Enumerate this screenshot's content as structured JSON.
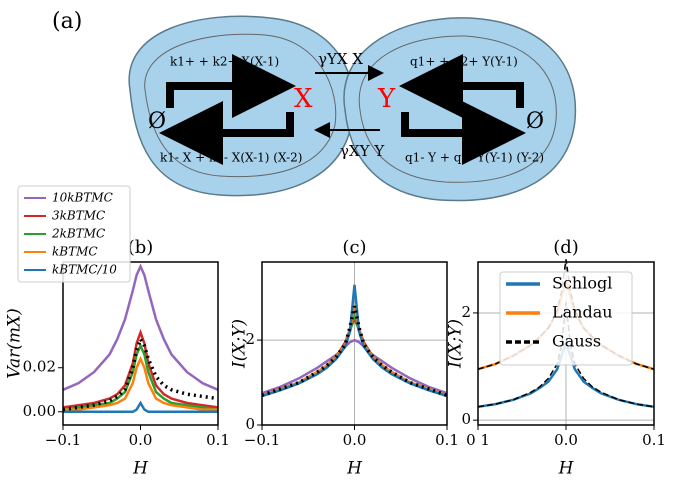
{
  "diagram": {
    "label": "(a)",
    "top_left": "k1+ + k2+ X(X-1)",
    "bottom_left": "k1- X + k2- X(X-1) (X-2)",
    "x_node": "X",
    "y_node": "Y",
    "empty_left": "Ø",
    "empty_right": "Ø",
    "top_right": "q1+ + q2+ Y(Y-1)",
    "bottom_right": "q1- Y + q2- Y(Y-1) (Y-2)",
    "rate_yx": "γYX X",
    "rate_xy": "γXY Y"
  },
  "chart_data": [
    {
      "type": "line",
      "title": "(b)",
      "xlabel": "H",
      "ylabel": "Var(mX)",
      "legend": "upper left",
      "grid": false,
      "x": [
        -0.1,
        -0.08,
        -0.06,
        -0.04,
        -0.03,
        -0.02,
        -0.01,
        -0.005,
        0,
        0.005,
        0.01,
        0.02,
        0.03,
        0.04,
        0.06,
        0.08,
        0.1
      ],
      "xlim": [
        -0.1,
        0.1
      ],
      "xticks": [
        {
          "value": -0.1,
          "label": "−0.1"
        },
        {
          "value": 0,
          "label": "0.0"
        },
        {
          "value": 0.1,
          "label": "0.1"
        }
      ],
      "ylim": [
        -0.006,
        0.068
      ],
      "yticks": [
        {
          "value": 0,
          "label": "0.00"
        },
        {
          "value": 0.02,
          "label": "0.02"
        }
      ],
      "series": [
        {
          "name": "10kBTMC",
          "color": "#9467bd",
          "values": [
            0.01,
            0.013,
            0.018,
            0.026,
            0.033,
            0.042,
            0.055,
            0.062,
            0.066,
            0.062,
            0.055,
            0.042,
            0.033,
            0.026,
            0.018,
            0.013,
            0.01
          ]
        },
        {
          "name": "3kBTMC",
          "color": "#d62728",
          "values": [
            0.002,
            0.003,
            0.004,
            0.006,
            0.008,
            0.012,
            0.022,
            0.031,
            0.036,
            0.031,
            0.022,
            0.012,
            0.008,
            0.006,
            0.004,
            0.003,
            0.002
          ]
        },
        {
          "name": "2kBTMC",
          "color": "#2ca02c",
          "values": [
            0.001,
            0.002,
            0.003,
            0.004,
            0.006,
            0.009,
            0.018,
            0.026,
            0.03,
            0.026,
            0.018,
            0.009,
            0.006,
            0.004,
            0.003,
            0.002,
            0.001
          ]
        },
        {
          "name": "kBTMC",
          "color": "#ff7f0e",
          "values": [
            0.001,
            0.001,
            0.002,
            0.003,
            0.004,
            0.006,
            0.013,
            0.02,
            0.024,
            0.02,
            0.013,
            0.006,
            0.004,
            0.003,
            0.002,
            0.001,
            0.001
          ]
        },
        {
          "name": "kBTMC/10",
          "color": "#1f77b4",
          "values": [
            0,
            0,
            0,
            0,
            0,
            0,
            0,
            0.001,
            0.004,
            0.001,
            0,
            0,
            0,
            0,
            0,
            0,
            0
          ]
        },
        {
          "color": "#000000",
          "dash": "dot",
          "values": [
            0.001,
            0.002,
            0.003,
            0.005,
            0.007,
            0.01,
            0.02,
            0.028,
            0.033,
            0.03,
            0.024,
            0.016,
            0.012,
            0.01,
            0.008,
            0.007,
            0.006
          ]
        }
      ]
    },
    {
      "type": "line",
      "title": "(c)",
      "xlabel": "H",
      "ylabel": "I(X;Y)",
      "grid": true,
      "x": [
        -0.1,
        -0.08,
        -0.06,
        -0.04,
        -0.03,
        -0.02,
        -0.01,
        -0.005,
        0,
        0.005,
        0.01,
        0.02,
        0.03,
        0.04,
        0.06,
        0.08,
        0.1
      ],
      "xlim": [
        -0.1,
        0.1
      ],
      "xticks": [
        {
          "value": -0.1,
          "label": "−0.1"
        },
        {
          "value": 0,
          "label": "0.0"
        },
        {
          "value": 0.1,
          "label": "0.1"
        }
      ],
      "ylim": [
        0,
        3.84
      ],
      "yticks": [
        0,
        2
      ],
      "series": [
        {
          "color": "#9467bd",
          "values": [
            0.75,
            0.9,
            1.1,
            1.35,
            1.5,
            1.65,
            1.85,
            1.95,
            2.0,
            1.95,
            1.85,
            1.65,
            1.5,
            1.35,
            1.1,
            0.9,
            0.75
          ]
        },
        {
          "color": "#d62728",
          "values": [
            0.7,
            0.85,
            1.0,
            1.25,
            1.4,
            1.6,
            1.95,
            2.25,
            2.5,
            2.25,
            1.95,
            1.6,
            1.4,
            1.25,
            1.0,
            0.85,
            0.7
          ]
        },
        {
          "color": "#2ca02c",
          "values": [
            0.7,
            0.85,
            1.0,
            1.25,
            1.4,
            1.6,
            1.9,
            2.2,
            2.6,
            2.2,
            1.9,
            1.6,
            1.4,
            1.25,
            1.0,
            0.85,
            0.7
          ]
        },
        {
          "color": "#ff7f0e",
          "values": [
            0.7,
            0.85,
            1.0,
            1.25,
            1.4,
            1.6,
            1.9,
            2.25,
            2.8,
            2.25,
            1.9,
            1.6,
            1.4,
            1.25,
            1.0,
            0.85,
            0.7
          ]
        },
        {
          "color": "#1f77b4",
          "values": [
            0.68,
            0.82,
            0.98,
            1.2,
            1.35,
            1.55,
            1.85,
            2.2,
            3.3,
            2.2,
            1.85,
            1.55,
            1.35,
            1.2,
            0.98,
            0.82,
            0.68
          ]
        },
        {
          "color": "#000000",
          "dash": "dot",
          "values": [
            0.7,
            0.85,
            1.0,
            1.25,
            1.4,
            1.6,
            1.9,
            2.3,
            2.8,
            2.3,
            1.9,
            1.6,
            1.4,
            1.25,
            1.0,
            0.85,
            0.7
          ]
        }
      ]
    },
    {
      "type": "line",
      "title": "(d)",
      "xlabel": "H",
      "ylabel": "I(X;Y)",
      "legend": "upper right",
      "grid": true,
      "x": [
        -0.1,
        -0.08,
        -0.06,
        -0.04,
        -0.03,
        -0.02,
        -0.01,
        -0.005,
        0,
        0.005,
        0.01,
        0.02,
        0.03,
        0.04,
        0.06,
        0.08,
        0.1
      ],
      "xlim": [
        -0.1,
        0.1
      ],
      "xticks": [
        {
          "value": -0.1,
          "label": "0 1"
        },
        {
          "value": 0,
          "label": "0.0"
        },
        {
          "value": 0.1,
          "label": "0.1"
        }
      ],
      "ylim": [
        -0.09,
        2.95
      ],
      "yticks": [
        0,
        2
      ],
      "series": [
        {
          "name": "Schlogl",
          "color": "#1f77b4",
          "values": [
            0.25,
            0.3,
            0.38,
            0.5,
            0.6,
            0.72,
            0.95,
            1.2,
            1.45,
            1.2,
            0.95,
            0.72,
            0.6,
            0.5,
            0.38,
            0.3,
            0.25
          ]
        },
        {
          "name": "Landau",
          "color": "#ff7f0e",
          "values": [
            0.95,
            1.05,
            1.2,
            1.4,
            1.55,
            1.72,
            2.0,
            2.3,
            2.6,
            2.3,
            2.0,
            1.72,
            1.55,
            1.4,
            1.2,
            1.05,
            0.95
          ]
        },
        {
          "name": "Gauss",
          "color": "#000000",
          "dash": "dash",
          "values": [
            0.95,
            1.05,
            1.2,
            1.4,
            1.55,
            1.72,
            2.05,
            2.4,
            3.0,
            2.4,
            2.05,
            1.72,
            1.55,
            1.4,
            1.2,
            1.05,
            0.95
          ]
        },
        {
          "color": "#000000",
          "dash": "dash",
          "values": [
            0.25,
            0.3,
            0.38,
            0.52,
            0.62,
            0.78,
            1.05,
            1.4,
            2.2,
            1.4,
            1.05,
            0.78,
            0.62,
            0.52,
            0.38,
            0.3,
            0.25
          ]
        }
      ]
    }
  ]
}
